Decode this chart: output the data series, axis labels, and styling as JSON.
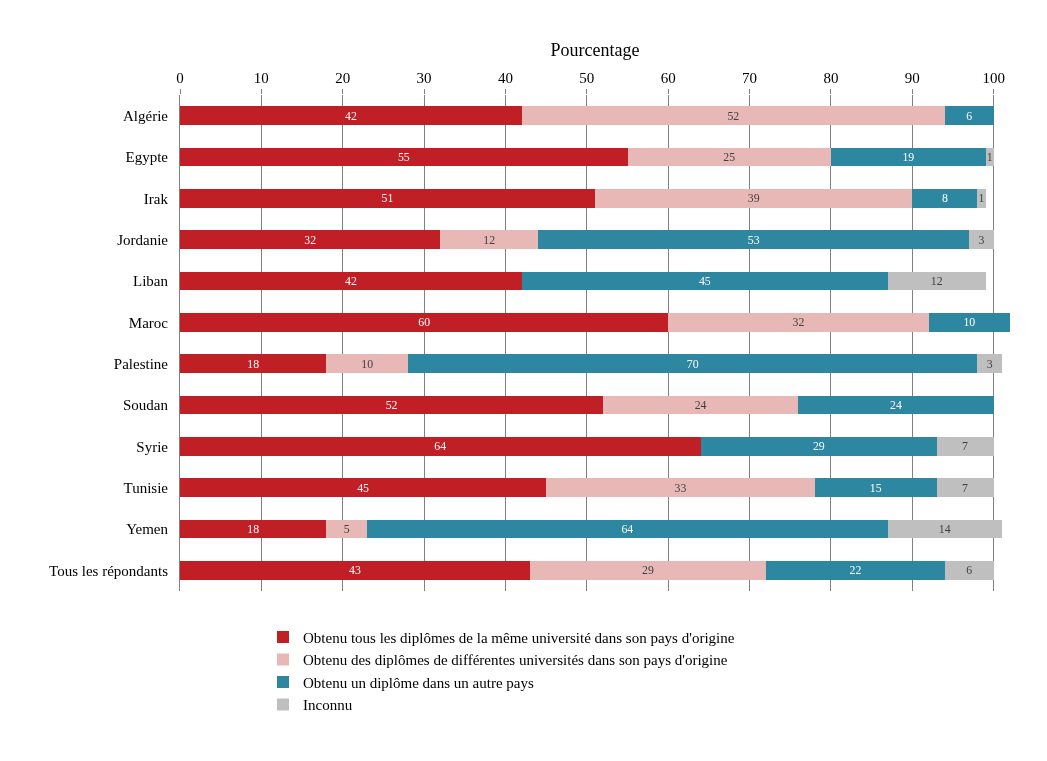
{
  "chart_data": {
    "type": "bar",
    "orientation": "horizontal",
    "stacked": true,
    "xlabel": "Pourcentage",
    "categories": [
      "Algérie",
      "Egypte",
      "Irak",
      "Jordanie",
      "Liban",
      "Maroc",
      "Palestine",
      "Soudan",
      "Syrie",
      "Tunisie",
      "Yemen",
      "Tous les répondants"
    ],
    "series": [
      {
        "name": "Obtenu tous les diplômes de la même université dans son pays d'origine",
        "color": "#c01f26",
        "values": [
          42,
          55,
          51,
          32,
          42,
          60,
          18,
          52,
          64,
          45,
          18,
          43
        ]
      },
      {
        "name": "Obtenu des diplômes de différentes universités dans son pays d'origine",
        "color": "#e8b8b6",
        "values": [
          52,
          25,
          39,
          12,
          null,
          32,
          10,
          24,
          null,
          33,
          5,
          29
        ]
      },
      {
        "name": "Obtenu un diplôme dans un autre pays",
        "color": "#2e87a0",
        "values": [
          6,
          19,
          8,
          53,
          45,
          10,
          70,
          24,
          29,
          15,
          64,
          22
        ]
      },
      {
        "name": "Inconnu",
        "color": "#bfbfbf",
        "values": [
          null,
          1,
          1,
          3,
          12,
          null,
          3,
          null,
          7,
          7,
          14,
          6
        ]
      }
    ],
    "xlim": [
      0,
      102
    ],
    "xticks": [
      0,
      10,
      20,
      30,
      40,
      50,
      60,
      70,
      80,
      90,
      100
    ],
    "grid": "x",
    "legend": "bottom",
    "data_labels": true
  }
}
